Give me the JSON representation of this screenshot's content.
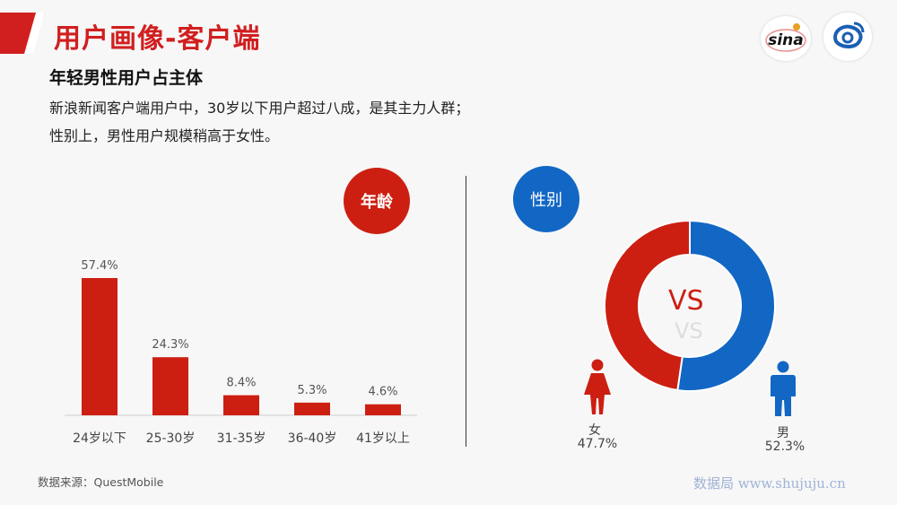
{
  "header": {
    "title": "用户画像-客户端",
    "subtitle": "年轻男性用户占主体",
    "desc_line1": "新浪新闻客户端用户中，30岁以下用户超过八成，是其主力人群；",
    "desc_line2": "性别上，男性用户规模稍高于女性。"
  },
  "logos": {
    "sina_text": "sina"
  },
  "badges": {
    "age": "年龄",
    "gender": "性别"
  },
  "colors": {
    "red": "#cc1f12",
    "blue": "#1267c4"
  },
  "chart_data": [
    {
      "type": "bar",
      "categories": [
        "24岁以下",
        "25-30岁",
        "31-35岁",
        "36-40岁",
        "41岁以上"
      ],
      "values": [
        57.4,
        24.3,
        8.4,
        5.3,
        4.6
      ],
      "data_labels": [
        "57.4%",
        "24.3%",
        "8.4%",
        "5.3%",
        "4.6%"
      ],
      "unit": "%",
      "ylim": [
        0,
        60
      ],
      "grid": false,
      "color": "#cc1f12"
    },
    {
      "type": "pie",
      "style": "donut",
      "categories": [
        "女",
        "男"
      ],
      "values": [
        47.7,
        52.3
      ],
      "data_labels": [
        "47.7%",
        "52.3%"
      ],
      "colors": [
        "#cc1f12",
        "#1267c4"
      ],
      "center_text": "VS"
    }
  ],
  "footer": {
    "source": "数据来源：QuestMobile",
    "watermark": "数据局  www.shujuju.cn"
  }
}
